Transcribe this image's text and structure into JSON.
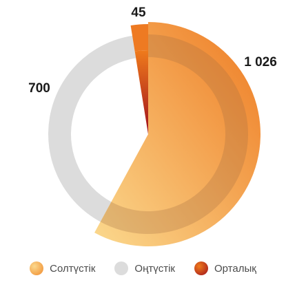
{
  "chart_data": {
    "type": "pie",
    "series": [
      {
        "name": "Солтүстік",
        "value": 1026,
        "label": "1 026",
        "colors": [
          "#f9d184",
          "#f08a2c"
        ]
      },
      {
        "name": "Оңтүстік",
        "value": 700,
        "label": "700",
        "colors": [
          "#dcdcdc",
          "#dcdcdc"
        ]
      },
      {
        "name": "Орталық",
        "value": 45,
        "label": "45",
        "colors": [
          "#e85a12",
          "#a3121e"
        ]
      }
    ],
    "legend_position": "bottom"
  }
}
